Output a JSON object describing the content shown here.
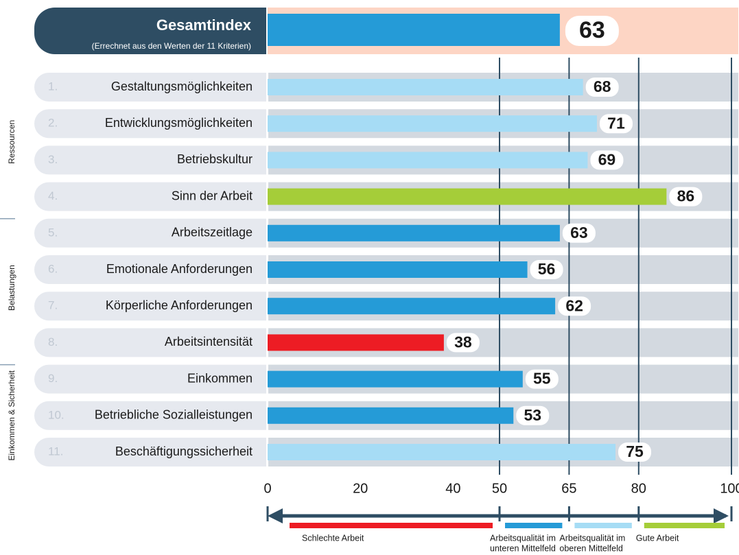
{
  "chart_data": {
    "type": "bar",
    "orientation": "horizontal",
    "total": {
      "title": "Gesamtindex",
      "subtitle": "(Errechnet aus den Werten der 11 Kriterien)",
      "value": 63,
      "color": "#259bd7"
    },
    "ranks": [
      "1.",
      "2.",
      "3.",
      "4.",
      "5.",
      "6.",
      "7.",
      "8.",
      "9.",
      "10.",
      "11."
    ],
    "categories": [
      "Gestaltungsmöglichkeiten",
      "Entwicklungsmöglichkeiten",
      "Betriebskultur",
      "Sinn der Arbeit",
      "Arbeitszeitlage",
      "Emotionale Anforderungen",
      "Körperliche Anforderungen",
      "Arbeitsintensität",
      "Einkommen",
      "Betriebliche Sozialleistungen",
      "Beschäftigungssicherheit"
    ],
    "values": [
      68,
      71,
      69,
      86,
      63,
      56,
      62,
      38,
      55,
      53,
      75
    ],
    "colors": [
      "#a6dcf5",
      "#a6dcf5",
      "#a6dcf5",
      "#a5cd39",
      "#259bd7",
      "#259bd7",
      "#259bd7",
      "#ed1c24",
      "#259bd7",
      "#259bd7",
      "#a6dcf5"
    ],
    "groups": [
      {
        "name": "Ressourcen",
        "rows": [
          0,
          3
        ]
      },
      {
        "name": "Belastungen",
        "rows": [
          4,
          7
        ]
      },
      {
        "name": "Einkommen & Sicherheit",
        "rows": [
          8,
          10
        ]
      }
    ],
    "xlim": [
      0,
      100
    ],
    "xticks": [
      0,
      20,
      40,
      50,
      65,
      80,
      100
    ],
    "gridlines": [
      50,
      65,
      80,
      100
    ],
    "legend": [
      {
        "lines": [
          "Schlechte Arbeit"
        ],
        "color": "#ed1c24"
      },
      {
        "lines": [
          "Arbeitsqualität im",
          "unteren Mittelfeld"
        ],
        "color": "#259bd7"
      },
      {
        "lines": [
          "Arbeitsqualität im",
          "oberen Mittelfeld"
        ],
        "color": "#a6dcf5"
      },
      {
        "lines": [
          "Gute Arbeit"
        ],
        "color": "#a5cd39"
      }
    ]
  }
}
